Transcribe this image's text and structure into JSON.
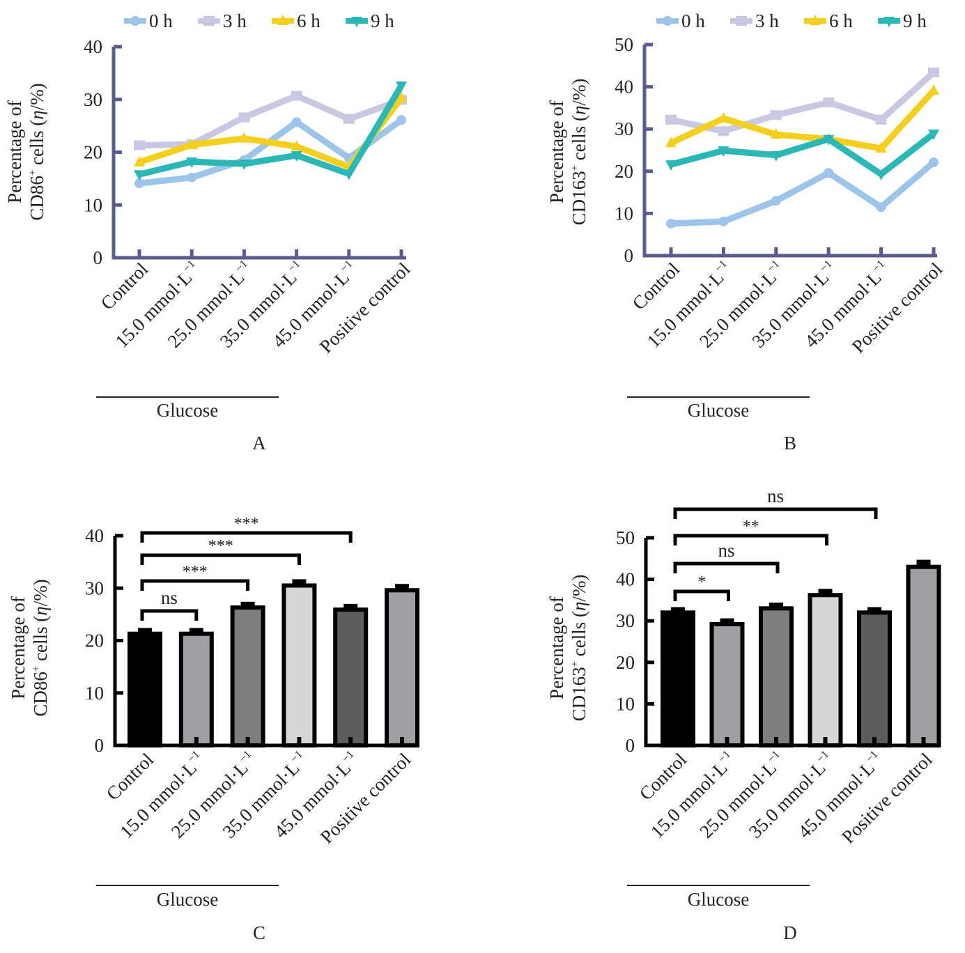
{
  "chart_data": [
    {
      "panel": "A",
      "type": "line",
      "panel_label": "A",
      "ylabel_line1": "Percentage of",
      "ylabel_line2_prefix": "CD86",
      "ylabel_line2_sup": "+",
      "ylabel_line2_suffix": " cells (",
      "ylabel_unit_italic": "η",
      "ylabel_unit_rest": "/%)",
      "ylim": [
        0,
        40
      ],
      "yticks": [
        0,
        10,
        20,
        30,
        40
      ],
      "grid": false,
      "legend_position": "top",
      "categories": [
        "Control",
        "15.0 mmol·L",
        "25.0 mmol·L",
        "35.0 mmol·L",
        "45.0 mmol·L",
        "Positive control"
      ],
      "category_sup": [
        "",
        "−1",
        "−1",
        "−1",
        "−1",
        ""
      ],
      "group_label": "Glucose",
      "group_span": [
        0,
        4
      ],
      "series": [
        {
          "name": "0 h",
          "color": "#9cc5e9",
          "marker": "circle",
          "values": [
            14.1,
            15.2,
            18.5,
            25.7,
            18.9,
            26.1
          ]
        },
        {
          "name": "3 h",
          "color": "#c9c8e3",
          "marker": "square",
          "values": [
            21.3,
            21.5,
            26.6,
            30.7,
            26.3,
            29.9
          ]
        },
        {
          "name": "6 h",
          "color": "#f4cf1d",
          "marker": "triangle-up",
          "values": [
            18.1,
            21.4,
            22.6,
            21.1,
            17.2,
            30.3
          ]
        },
        {
          "name": "9 h",
          "color": "#2bb7b5",
          "marker": "triangle-down",
          "values": [
            15.8,
            18.2,
            17.8,
            19.4,
            15.9,
            32.6
          ]
        }
      ]
    },
    {
      "panel": "B",
      "type": "line",
      "panel_label": "B",
      "ylabel_line1": "Percentage of",
      "ylabel_line2_prefix": "CD163",
      "ylabel_line2_sup": "+",
      "ylabel_line2_suffix": " cells (",
      "ylabel_unit_italic": "η",
      "ylabel_unit_rest": "/%)",
      "ylim": [
        0,
        50
      ],
      "yticks": [
        0,
        10,
        20,
        30,
        40,
        50
      ],
      "grid": false,
      "legend_position": "top",
      "categories": [
        "Control",
        "15.0 mmol·L",
        "25.0 mmol·L",
        "35.0 mmol·L",
        "45.0 mmol·L",
        "Positive control"
      ],
      "category_sup": [
        "",
        "−1",
        "−1",
        "−1",
        "−1",
        ""
      ],
      "group_label": "Glucose",
      "group_span": [
        0,
        4
      ],
      "series": [
        {
          "name": "0 h",
          "color": "#9cc5e9",
          "marker": "circle",
          "values": [
            7.6,
            8.1,
            13.0,
            19.6,
            11.5,
            22.1
          ]
        },
        {
          "name": "3 h",
          "color": "#c9c8e3",
          "marker": "square",
          "values": [
            32.2,
            29.5,
            33.3,
            36.3,
            32.2,
            43.4
          ]
        },
        {
          "name": "6 h",
          "color": "#f4cf1d",
          "marker": "triangle-up",
          "values": [
            26.7,
            32.5,
            28.7,
            27.6,
            25.4,
            39.1
          ]
        },
        {
          "name": "9 h",
          "color": "#2bb7b5",
          "marker": "triangle-down",
          "values": [
            21.6,
            24.9,
            23.8,
            27.6,
            19.3,
            28.9
          ]
        }
      ]
    },
    {
      "panel": "C",
      "type": "bar",
      "panel_label": "C",
      "ylabel_line1": "Percentage of",
      "ylabel_line2_prefix": "CD86",
      "ylabel_line2_sup": "+",
      "ylabel_line2_suffix": " cells (",
      "ylabel_unit_italic": "η",
      "ylabel_unit_rest": "/%)",
      "ylim": [
        0,
        40
      ],
      "yticks": [
        0,
        10,
        20,
        30,
        40
      ],
      "grid": false,
      "categories": [
        "Control",
        "15.0 mmol·L",
        "25.0 mmol·L",
        "35.0 mmol·L",
        "45.0 mmol·L",
        "Positive control"
      ],
      "category_sup": [
        "",
        "−1",
        "−1",
        "−1",
        "−1",
        ""
      ],
      "group_label": "Glucose",
      "group_span": [
        0,
        4
      ],
      "values": [
        21.3,
        21.3,
        26.3,
        30.5,
        25.9,
        29.6
      ],
      "errors": [
        0.7,
        0.7,
        0.7,
        0.8,
        0.7,
        0.8
      ],
      "bar_colors": [
        "#000000",
        "#9e9fa3",
        "#7d7e80",
        "#d5d6d6",
        "#5d5d5d",
        "#9e9fa3"
      ],
      "significance": [
        {
          "from": 0,
          "to": 1,
          "label": "ns"
        },
        {
          "from": 0,
          "to": 2,
          "label": "***"
        },
        {
          "from": 0,
          "to": 3,
          "label": "***"
        },
        {
          "from": 0,
          "to": 4,
          "label": "***"
        }
      ]
    },
    {
      "panel": "D",
      "type": "bar",
      "panel_label": "D",
      "ylabel_line1": "Percentage of",
      "ylabel_line2_prefix": "CD163",
      "ylabel_line2_sup": "+",
      "ylabel_line2_suffix": " cells (",
      "ylabel_unit_italic": "η",
      "ylabel_unit_rest": "/%)",
      "ylim": [
        0,
        50
      ],
      "yticks": [
        0,
        10,
        20,
        30,
        40,
        50
      ],
      "grid": false,
      "categories": [
        "Control",
        "15.0 mmol·L",
        "25.0 mmol·L",
        "35.0 mmol·L",
        "45.0 mmol·L",
        "Positive control"
      ],
      "category_sup": [
        "",
        "−1",
        "−1",
        "−1",
        "−1",
        ""
      ],
      "group_label": "Glucose",
      "group_span": [
        0,
        4
      ],
      "values": [
        32.0,
        29.2,
        33.0,
        36.2,
        32.0,
        43.0
      ],
      "errors": [
        0.8,
        0.9,
        0.9,
        1.0,
        0.8,
        1.2
      ],
      "bar_colors": [
        "#000000",
        "#9e9fa3",
        "#7d7e80",
        "#d5d6d6",
        "#5d5d5d",
        "#9e9fa3"
      ],
      "significance": [
        {
          "from": 0,
          "to": 1,
          "label": "*"
        },
        {
          "from": 0,
          "to": 2,
          "label": "ns"
        },
        {
          "from": 0,
          "to": 3,
          "label": "**"
        },
        {
          "from": 0,
          "to": 4,
          "label": "ns"
        }
      ]
    }
  ]
}
